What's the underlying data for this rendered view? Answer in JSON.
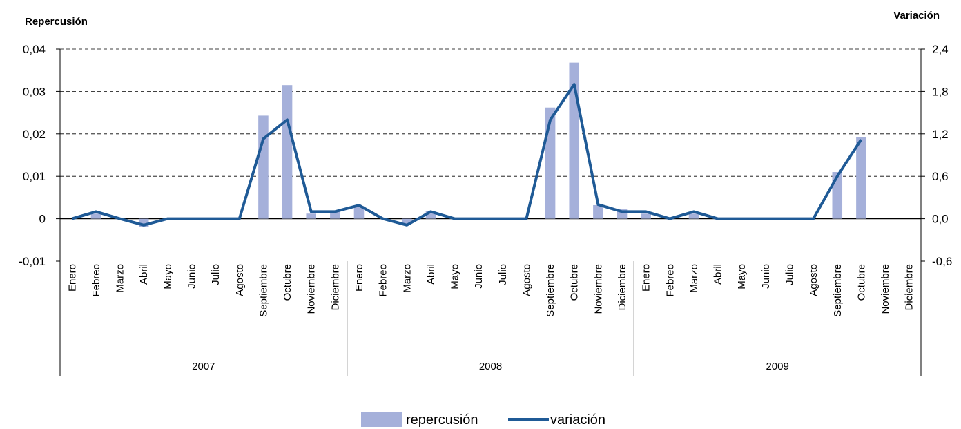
{
  "chart_data": {
    "type": "bar",
    "left_axis_title": "Repercusión",
    "right_axis_title": "Variación",
    "left_ticks": [
      "0,04",
      "0,03",
      "0,02",
      "0,01",
      "0",
      "-0,01"
    ],
    "right_ticks": [
      "2,4",
      "1,8",
      "1,2",
      "0,6",
      "0,0",
      "-0,6"
    ],
    "ylim_left": [
      -0.01,
      0.04
    ],
    "ylim_right": [
      -0.6,
      2.4
    ],
    "grid": "dashed horizontal",
    "years": [
      "2007",
      "2008",
      "2009"
    ],
    "months": [
      "Enero",
      "Febreo",
      "Marzo",
      "Abril",
      "Mayo",
      "Junio",
      "Julio",
      "Agosto",
      "Septiembre",
      "Octubre",
      "Noviembre",
      "Diciembre"
    ],
    "series": [
      {
        "name": "repercusión",
        "type": "bar",
        "axis": "left",
        "color": "#A5B0DA",
        "values": [
          0.0,
          0.0012,
          0.0,
          -0.002,
          0.0,
          0.0,
          0.0,
          0.0,
          0.0243,
          0.0315,
          0.0012,
          0.0018,
          0.003,
          0.0,
          -0.0012,
          0.0018,
          0.0,
          0.0,
          0.0,
          0.0,
          0.0262,
          0.0368,
          0.0032,
          0.0022,
          0.0012,
          0.0,
          0.0012,
          0.0,
          0.0,
          0.0,
          0.0,
          0.0,
          0.011,
          0.0192,
          null,
          null
        ]
      },
      {
        "name": "variación",
        "type": "line",
        "axis": "right",
        "color": "#1F5A96",
        "values": [
          0.0,
          0.1,
          0.0,
          -0.09,
          0.0,
          0.0,
          0.0,
          0.0,
          1.13,
          1.4,
          0.1,
          0.1,
          0.19,
          0.0,
          -0.09,
          0.1,
          0.0,
          0.0,
          0.0,
          0.0,
          1.4,
          1.9,
          0.2,
          0.1,
          0.1,
          0.0,
          0.1,
          0.0,
          0.0,
          0.0,
          0.0,
          0.0,
          0.6,
          1.12,
          null,
          null
        ]
      }
    ],
    "legend": [
      "repercusión",
      "variación"
    ],
    "legend_position": "bottom"
  }
}
